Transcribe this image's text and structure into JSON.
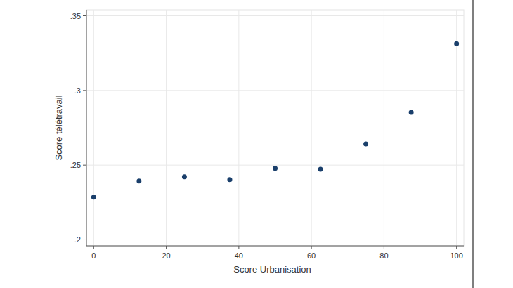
{
  "chart_data": {
    "type": "scatter",
    "x_label": "Score Urbanisation",
    "y_label": "Score télétravail",
    "x": [
      0,
      12.5,
      25,
      37.5,
      50,
      62.5,
      75,
      87.5,
      100
    ],
    "values": [
      0.2286,
      0.2394,
      0.2422,
      0.2403,
      0.2478,
      0.2473,
      0.2642,
      0.2853,
      0.3313
    ],
    "color": "#1a3f6b",
    "marker": "circle",
    "xlim": [
      -2,
      102
    ],
    "xticks": [
      0,
      20,
      40,
      60,
      80,
      100
    ],
    "ylim": [
      0.196,
      0.354
    ],
    "yticks": [
      {
        "value": 0.2,
        "label": ".2"
      },
      {
        "value": 0.25,
        "label": ".25"
      },
      {
        "value": 0.3,
        "label": ".3"
      },
      {
        "value": 0.35,
        "label": ".35"
      }
    ],
    "grid": true
  }
}
